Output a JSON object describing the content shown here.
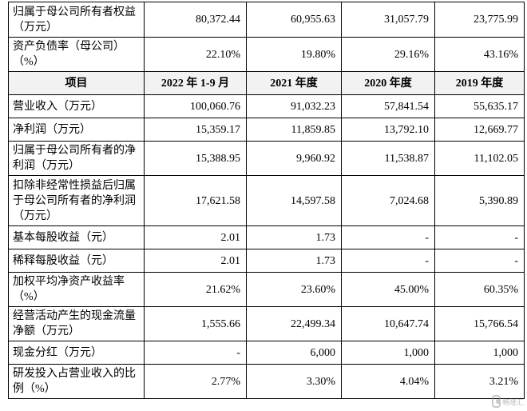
{
  "table": {
    "pre_rows": [
      {
        "label": "归属于母公司所有者权益（万元）",
        "values": [
          "80,372.44",
          "60,955.63",
          "31,057.79",
          "23,775.99"
        ]
      },
      {
        "label": "资产负债率（母公司）（%）",
        "values": [
          "22.10%",
          "19.80%",
          "29.16%",
          "43.16%"
        ]
      }
    ],
    "header": {
      "label": "项目",
      "columns": [
        "2022 年 1-9 月",
        "2021 年度",
        "2020 年度",
        "2019 年度"
      ]
    },
    "rows": [
      {
        "label": "营业收入（万元）",
        "values": [
          "100,060.76",
          "91,032.23",
          "57,841.54",
          "55,635.17"
        ]
      },
      {
        "label": "净利润（万元）",
        "values": [
          "15,359.17",
          "11,859.85",
          "13,792.10",
          "12,669.77"
        ]
      },
      {
        "label": "归属于母公司所有者的净利润（万元）",
        "values": [
          "15,388.95",
          "9,960.92",
          "11,538.87",
          "11,102.05"
        ]
      },
      {
        "label": "扣除非经常性损益后归属于母公司所有者的净利润（万元）",
        "values": [
          "17,621.58",
          "14,597.58",
          "7,024.68",
          "5,390.89"
        ]
      },
      {
        "label": "基本每股收益（元）",
        "values": [
          "2.01",
          "1.73",
          "-",
          "-"
        ]
      },
      {
        "label": "稀释每股收益（元）",
        "values": [
          "2.01",
          "1.73",
          "-",
          "-"
        ]
      },
      {
        "label": "加权平均净资产收益率（%）",
        "values": [
          "21.62%",
          "23.60%",
          "45.00%",
          "60.35%"
        ]
      },
      {
        "label": "经营活动产生的现金流量净额（万元）",
        "values": [
          "1,555.66",
          "22,499.34",
          "10,647.74",
          "15,766.54"
        ]
      },
      {
        "label": "现金分红（万元）",
        "values": [
          "-",
          "6,000",
          "1,000",
          "1,000"
        ]
      },
      {
        "label": "研发投入占营业收入的比例（%）",
        "values": [
          "2.77%",
          "3.30%",
          "4.04%",
          "3.21%"
        ]
      }
    ]
  },
  "watermark": {
    "text": "格隆汇",
    "icon": "gelonghui-logo-icon"
  }
}
